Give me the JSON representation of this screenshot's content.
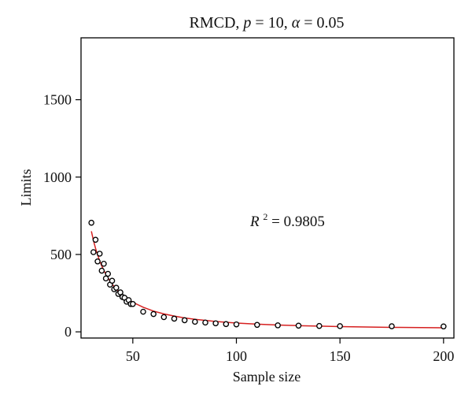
{
  "chart_data": {
    "type": "scatter",
    "title": {
      "prefix": "RMCD, ",
      "p_symbol": "p",
      "p_part": " = 10, ",
      "alpha_symbol": "α",
      "alpha_part": " = 0.05"
    },
    "xlabel": "Sample size",
    "ylabel": "Limits",
    "xlim": [
      25,
      205
    ],
    "ylim": [
      -40,
      1900
    ],
    "x_ticks": [
      50,
      100,
      150,
      200
    ],
    "x_tick_labels": [
      "50",
      "100",
      "150",
      "200"
    ],
    "y_ticks": [
      0,
      500,
      1000,
      1500
    ],
    "y_tick_labels": [
      "0",
      "500",
      "1000",
      "1500"
    ],
    "grid": false,
    "legend": "none",
    "series": [
      {
        "kind": "points",
        "marker": "open-circle",
        "color": "#000000",
        "points": [
          [
            30,
            705
          ],
          [
            31,
            515
          ],
          [
            32,
            595
          ],
          [
            33,
            455
          ],
          [
            34,
            505
          ],
          [
            35,
            395
          ],
          [
            36,
            440
          ],
          [
            37,
            345
          ],
          [
            38,
            375
          ],
          [
            39,
            305
          ],
          [
            40,
            330
          ],
          [
            41,
            275
          ],
          [
            42,
            285
          ],
          [
            43,
            245
          ],
          [
            44,
            255
          ],
          [
            45,
            225
          ],
          [
            46,
            220
          ],
          [
            47,
            195
          ],
          [
            48,
            205
          ],
          [
            49,
            180
          ],
          [
            50,
            180
          ],
          [
            55,
            130
          ],
          [
            60,
            115
          ],
          [
            65,
            95
          ],
          [
            70,
            85
          ],
          [
            75,
            75
          ],
          [
            80,
            65
          ],
          [
            85,
            60
          ],
          [
            90,
            55
          ],
          [
            95,
            50
          ],
          [
            100,
            48
          ],
          [
            110,
            45
          ],
          [
            120,
            42
          ],
          [
            130,
            40
          ],
          [
            140,
            38
          ],
          [
            150,
            37
          ],
          [
            175,
            36
          ],
          [
            200,
            35
          ]
        ]
      },
      {
        "kind": "fitted-curve",
        "color": "#d62020",
        "points": [
          [
            30,
            650
          ],
          [
            31,
            590
          ],
          [
            32,
            540
          ],
          [
            33,
            497
          ],
          [
            34,
            459
          ],
          [
            35,
            426
          ],
          [
            36,
            397
          ],
          [
            37,
            372
          ],
          [
            38,
            349
          ],
          [
            40,
            309
          ],
          [
            42,
            277
          ],
          [
            44,
            250
          ],
          [
            46,
            228
          ],
          [
            48,
            208
          ],
          [
            50,
            191
          ],
          [
            55,
            159
          ],
          [
            60,
            134
          ],
          [
            65,
            116
          ],
          [
            70,
            102
          ],
          [
            75,
            90
          ],
          [
            80,
            81
          ],
          [
            90,
            67
          ],
          [
            100,
            57
          ],
          [
            110,
            50
          ],
          [
            120,
            44
          ],
          [
            130,
            40
          ],
          [
            140,
            37
          ],
          [
            150,
            34
          ],
          [
            175,
            29
          ],
          [
            200,
            26
          ]
        ]
      }
    ],
    "annotation": {
      "symbol": "R",
      "exponent": "2",
      "text": " = 0.9805"
    }
  }
}
